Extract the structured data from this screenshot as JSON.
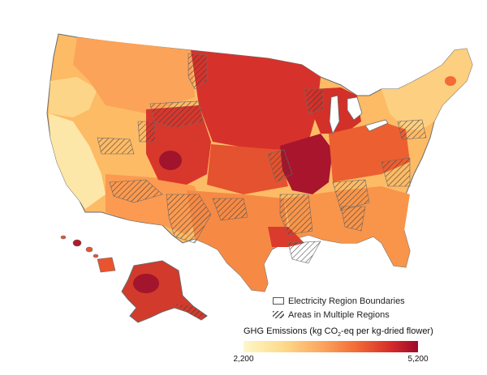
{
  "legend": {
    "boundaries_label": "Electricity Region Boundaries",
    "multiple_label": "Areas in Multiple Regions",
    "scale_title_prefix": "GHG Emissions (kg CO",
    "scale_title_sub": "2",
    "scale_title_suffix": "-eq per kg-dried flower)",
    "scale_min": "2,200",
    "scale_max": "5,200"
  },
  "colors": {
    "low": "#fef7c9",
    "mid": "#fca55d",
    "high": "#9b0b2b",
    "boundary": "#5a5a5a"
  }
}
